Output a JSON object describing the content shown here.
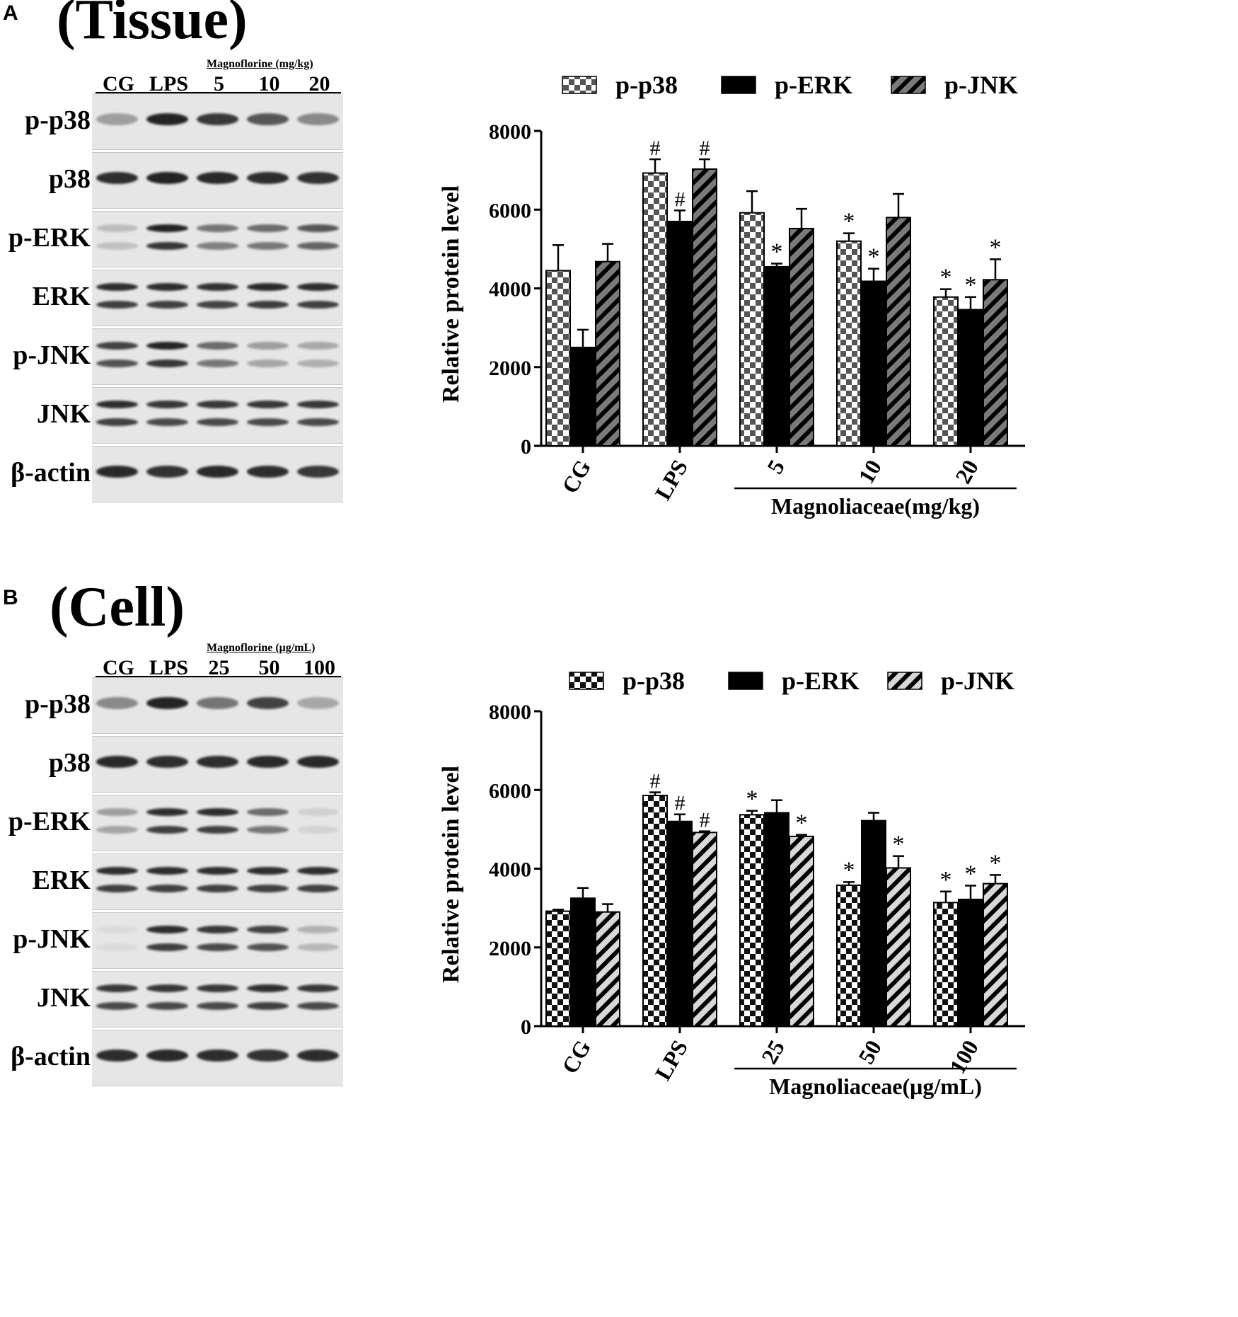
{
  "panels": [
    {
      "letter": "A",
      "title": "(Tissue)",
      "blot": {
        "lanes": [
          "CG",
          "LPS",
          "5",
          "10",
          "20"
        ],
        "group_label": "Magnoflorine (mg/kg)",
        "rows": [
          {
            "label": "p-p38",
            "intensity": [
              0.35,
              0.95,
              0.85,
              0.7,
              0.45
            ],
            "double": false
          },
          {
            "label": "p38",
            "intensity": [
              0.9,
              0.95,
              0.92,
              0.9,
              0.88
            ],
            "double": false
          },
          {
            "label": "p-ERK",
            "intensity": [
              0.2,
              0.95,
              0.55,
              0.6,
              0.7
            ],
            "double": true
          },
          {
            "label": "ERK",
            "intensity": [
              0.9,
              0.9,
              0.88,
              0.92,
              0.9
            ],
            "double": true
          },
          {
            "label": "p-JNK",
            "intensity": [
              0.8,
              0.95,
              0.6,
              0.35,
              0.3
            ],
            "double": true
          },
          {
            "label": "JNK",
            "intensity": [
              0.9,
              0.85,
              0.85,
              0.85,
              0.85
            ],
            "double": true
          },
          {
            "label": "β-actin",
            "intensity": [
              0.92,
              0.88,
              0.92,
              0.9,
              0.85
            ],
            "double": false
          }
        ]
      },
      "chart_data": {
        "type": "bar",
        "categories": [
          "CG",
          "LPS",
          "5",
          "10",
          "20"
        ],
        "group_axis_label": "Magnoliaceae(mg/kg)",
        "ylabel": "Relative protein level",
        "ylim": [
          0,
          8000
        ],
        "yticks": [
          0,
          2000,
          4000,
          6000,
          8000
        ],
        "legend_position": "top",
        "series": [
          {
            "name": "p-p38",
            "pattern": "checker",
            "values": [
              4450,
              6930,
              5920,
              5200,
              3780
            ],
            "errors": [
              650,
              350,
              550,
              200,
              200
            ],
            "marks": [
              "",
              "#",
              "",
              "*",
              "*"
            ]
          },
          {
            "name": "p-ERK",
            "pattern": "solid",
            "values": [
              2500,
              5700,
              4550,
              4180,
              3460
            ],
            "errors": [
              450,
              280,
              80,
              320,
              320
            ],
            "marks": [
              "",
              "#",
              "*",
              "*",
              "*"
            ]
          },
          {
            "name": "p-JNK",
            "pattern": "hatch-dark",
            "values": [
              4680,
              7030,
              5520,
              5800,
              4220
            ],
            "errors": [
              450,
              250,
              500,
              600,
              520
            ],
            "marks": [
              "",
              "#",
              "",
              "",
              "*"
            ]
          }
        ]
      }
    },
    {
      "letter": "B",
      "title": "(Cell)",
      "blot": {
        "lanes": [
          "CG",
          "LPS",
          "25",
          "50",
          "100"
        ],
        "group_label": "Magnoflorine (μg/mL)",
        "rows": [
          {
            "label": "p-p38",
            "intensity": [
              0.45,
              0.95,
              0.55,
              0.8,
              0.3
            ],
            "double": false
          },
          {
            "label": "p38",
            "intensity": [
              0.92,
              0.9,
              0.9,
              0.92,
              0.92
            ],
            "double": false
          },
          {
            "label": "p-ERK",
            "intensity": [
              0.35,
              0.9,
              0.9,
              0.6,
              0.1
            ],
            "double": true
          },
          {
            "label": "ERK",
            "intensity": [
              0.9,
              0.9,
              0.9,
              0.9,
              0.9
            ],
            "double": true
          },
          {
            "label": "p-JNK",
            "intensity": [
              0.05,
              0.9,
              0.85,
              0.8,
              0.25
            ],
            "double": true
          },
          {
            "label": "JNK",
            "intensity": [
              0.85,
              0.85,
              0.85,
              0.9,
              0.85
            ],
            "double": true
          },
          {
            "label": "β-actin",
            "intensity": [
              0.9,
              0.92,
              0.9,
              0.88,
              0.9
            ],
            "double": false
          }
        ]
      },
      "chart_data": {
        "type": "bar",
        "categories": [
          "CG",
          "LPS",
          "25",
          "50",
          "100"
        ],
        "group_axis_label": "Magnoliaceae(μg/mL)",
        "ylabel": "Relative protein level",
        "ylim": [
          0,
          8000
        ],
        "yticks": [
          0,
          2000,
          4000,
          6000,
          8000
        ],
        "legend_position": "top",
        "series": [
          {
            "name": "p-p38",
            "pattern": "checker",
            "values": [
              2920,
              5860,
              5370,
              3580,
              3140
            ],
            "errors": [
              40,
              80,
              100,
              80,
              280
            ],
            "marks": [
              "",
              "#",
              "*",
              "*",
              "*"
            ]
          },
          {
            "name": "p-ERK",
            "pattern": "solid",
            "values": [
              3250,
              5200,
              5420,
              5220,
              3220
            ],
            "errors": [
              260,
              180,
              320,
              200,
              350
            ],
            "marks": [
              "",
              "#",
              "",
              "",
              "*"
            ]
          },
          {
            "name": "p-JNK",
            "pattern": "hatch-light",
            "values": [
              2900,
              4920,
              4820,
              4020,
              3620
            ],
            "errors": [
              200,
              30,
              40,
              300,
              220
            ],
            "marks": [
              "",
              "#",
              "*",
              "*",
              "*"
            ]
          }
        ]
      }
    }
  ]
}
